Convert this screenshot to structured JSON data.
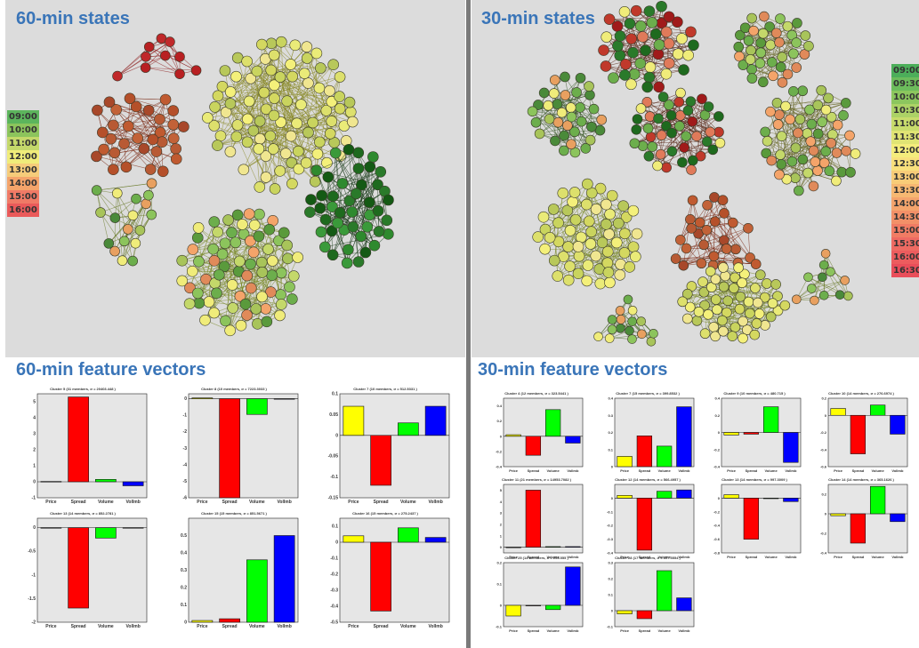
{
  "sections": {
    "states60_title": "60-min states",
    "states30_title": "30-min states",
    "feat60_title": "60-min feature vectors",
    "feat30_title": "30-min feature vectors"
  },
  "colors": {
    "panel_bg": "#dcdcdc",
    "title_blue": "#3a75b8",
    "Price": "#ffff00",
    "Spread": "#ff0000",
    "Volume": "#00ff00",
    "VolImb": "#0000ff",
    "edge_red": "#8b1a1a",
    "edge_green": "#7a8a2a"
  },
  "legend60": [
    {
      "label": "09:00",
      "color": "#5cb55c"
    },
    {
      "label": "10:00",
      "color": "#8cc45c"
    },
    {
      "label": "11:00",
      "color": "#c4d86a"
    },
    {
      "label": "12:00",
      "color": "#f0ec7a"
    },
    {
      "label": "13:00",
      "color": "#f6cc7a"
    },
    {
      "label": "14:00",
      "color": "#f4a46a"
    },
    {
      "label": "15:00",
      "color": "#f07a66"
    },
    {
      "label": "16:00",
      "color": "#ea5a5a"
    }
  ],
  "legend30": [
    {
      "label": "09:00",
      "color": "#4cae5a"
    },
    {
      "label": "09:30",
      "color": "#6cbc5c"
    },
    {
      "label": "10:00",
      "color": "#8cc65e"
    },
    {
      "label": "10:30",
      "color": "#acd266"
    },
    {
      "label": "11:00",
      "color": "#c8dc6c"
    },
    {
      "label": "11:30",
      "color": "#e0e474"
    },
    {
      "label": "12:00",
      "color": "#f4ec7c"
    },
    {
      "label": "12:30",
      "color": "#f8e07c"
    },
    {
      "label": "13:00",
      "color": "#f8cc78"
    },
    {
      "label": "13:30",
      "color": "#f6b872"
    },
    {
      "label": "14:00",
      "color": "#f4a46c"
    },
    {
      "label": "14:30",
      "color": "#f29068"
    },
    {
      "label": "15:00",
      "color": "#f07c64"
    },
    {
      "label": "15:30",
      "color": "#ee6a62"
    },
    {
      "label": "16:00",
      "color": "#ec5c5e"
    },
    {
      "label": "16:30",
      "color": "#e94e5a"
    }
  ],
  "network_colors": {
    "brown": [
      "#b5502a",
      "#c05a30",
      "#a8482a",
      "#b85a34",
      "#c26238"
    ],
    "yellow": [
      "#f4f07a",
      "#dde06c",
      "#c9d45e",
      "#eaeb78",
      "#b8c85a",
      "#f0e690",
      "#d4d860"
    ],
    "mixed": [
      "#8cc45c",
      "#6cae4c",
      "#c4d86a",
      "#f0ec7a",
      "#f4a46a",
      "#5a9a3c",
      "#a8c45a",
      "#e08a5a"
    ],
    "darkgreen": [
      "#1e6a1e",
      "#2a7a2a",
      "#145a14",
      "#2e8a2e",
      "#3a9a3a"
    ],
    "redgreen": [
      "#2a7a2a",
      "#c0392b",
      "#e07a5a",
      "#6cae4c",
      "#f0ec7a",
      "#a01a1a",
      "#1e6a1e"
    ],
    "red": [
      "#c0282a",
      "#d03030",
      "#b82022"
    ],
    "olive": [
      "#6cae4c",
      "#8cc45c",
      "#a8c45a",
      "#f0ec7a",
      "#e8a060",
      "#4a8a3a"
    ]
  },
  "chart_data": [
    {
      "type": "bar",
      "title": "Cluster 5 (31 members, σ = 20403.448 )",
      "categories": [
        "Price",
        "Spread",
        "Volume",
        "VolImb"
      ],
      "values": [
        0.02,
        5.3,
        0.15,
        -0.25
      ],
      "ylim": [
        -1,
        5.5
      ],
      "yticks": [
        -1,
        0,
        1,
        2,
        3,
        4,
        5
      ]
    },
    {
      "type": "bar",
      "title": "Cluster 8 (10 members, σ = 7223.3033 )",
      "categories": [
        "Price",
        "Spread",
        "Volume",
        "VolImb"
      ],
      "values": [
        0.05,
        -6.0,
        -0.95,
        0.0
      ],
      "ylim": [
        -6,
        0.3
      ],
      "yticks": [
        -6,
        -5,
        -4,
        -3,
        -2,
        -1,
        0
      ]
    },
    {
      "type": "bar",
      "title": "Cluster 7 (10 members, σ = 512.5331 )",
      "categories": [
        "Price",
        "Spread",
        "Volume",
        "VolImb"
      ],
      "values": [
        0.07,
        -0.12,
        0.03,
        0.07
      ],
      "ylim": [
        -0.15,
        0.1
      ],
      "yticks": [
        -0.15,
        -0.1,
        -0.05,
        0,
        0.05,
        0.1
      ]
    },
    {
      "type": "bar",
      "title": "Cluster 13 (14 members, σ = 852.2781 )",
      "categories": [
        "Price",
        "Spread",
        "Volume",
        "VolImb"
      ],
      "values": [
        0.0,
        -1.7,
        -0.22,
        0.0
      ],
      "ylim": [
        -2,
        0.2
      ],
      "yticks": [
        -2,
        -1.5,
        -1,
        -0.5,
        0
      ]
    },
    {
      "type": "bar",
      "title": "Cluster 15 (15 members, σ = 851.5671 )",
      "categories": [
        "Price",
        "Spread",
        "Volume",
        "VolImb"
      ],
      "values": [
        0.01,
        0.02,
        0.36,
        0.5
      ],
      "ylim": [
        0,
        0.6
      ],
      "yticks": [
        0,
        0.1,
        0.2,
        0.3,
        0.4,
        0.5
      ]
    },
    {
      "type": "bar",
      "title": "Cluster 16 (15 members, σ = 275.2437 )",
      "categories": [
        "Price",
        "Spread",
        "Volume",
        "VolImb"
      ],
      "values": [
        0.04,
        -0.43,
        0.09,
        0.03
      ],
      "ylim": [
        -0.5,
        0.15
      ],
      "yticks": [
        -0.5,
        -0.4,
        -0.3,
        -0.2,
        -0.1,
        0,
        0.1
      ]
    },
    {
      "type": "bar",
      "title": "Cluster 4 (12 members, σ = 323.5441 )",
      "categories": [
        "Price",
        "Spread",
        "Volume",
        "VolImb"
      ],
      "values": [
        0.02,
        -0.25,
        0.35,
        -0.09
      ],
      "ylim": [
        -0.4,
        0.5
      ],
      "yticks": [
        -0.4,
        -0.2,
        0,
        0.2,
        0.4
      ]
    },
    {
      "type": "bar",
      "title": "Cluster 7 (15 members, σ = 399.8532 )",
      "categories": [
        "Price",
        "Spread",
        "Volume",
        "VolImb"
      ],
      "values": [
        0.06,
        0.18,
        0.12,
        0.35
      ],
      "ylim": [
        0,
        0.4
      ],
      "yticks": [
        0,
        0.1,
        0.2,
        0.3,
        0.4
      ]
    },
    {
      "type": "bar",
      "title": "Cluster 9 (10 members, σ = 480.715 )",
      "categories": [
        "Price",
        "Spread",
        "Volume",
        "VolImb"
      ],
      "values": [
        -0.03,
        -0.02,
        0.3,
        -0.35
      ],
      "ylim": [
        -0.4,
        0.4
      ],
      "yticks": [
        -0.4,
        -0.2,
        0,
        0.2,
        0.4
      ]
    },
    {
      "type": "bar",
      "title": "Cluster 10 (14 members, σ = 276.6974 )",
      "categories": [
        "Price",
        "Spread",
        "Volume",
        "VolImb"
      ],
      "values": [
        0.08,
        -0.45,
        0.12,
        -0.22
      ],
      "ylim": [
        -0.6,
        0.2
      ],
      "yticks": [
        -0.6,
        -0.4,
        -0.2,
        0,
        0.2
      ]
    },
    {
      "type": "bar",
      "title": "Cluster 11 (21 members, σ = 14953.7082 )",
      "categories": [
        "Price",
        "Spread",
        "Volume",
        "VolImb"
      ],
      "values": [
        0.0,
        5.0,
        0.05,
        0.05
      ],
      "ylim": [
        -0.5,
        5.5
      ],
      "yticks": [
        0,
        1,
        2,
        3,
        4,
        5
      ]
    },
    {
      "type": "bar",
      "title": "Cluster 12 (14 members, σ = 566.4957 )",
      "categories": [
        "Price",
        "Spread",
        "Volume",
        "VolImb"
      ],
      "values": [
        0.02,
        -0.38,
        0.05,
        0.06
      ],
      "ylim": [
        -0.4,
        0.1
      ],
      "yticks": [
        -0.4,
        -0.3,
        -0.2,
        -0.1,
        0
      ]
    },
    {
      "type": "bar",
      "title": "Cluster 13 (14 members, σ = 997.3009 )",
      "categories": [
        "Price",
        "Spread",
        "Volume",
        "VolImb"
      ],
      "values": [
        0.05,
        -0.6,
        0.0,
        -0.05
      ],
      "ylim": [
        -0.8,
        0.2
      ],
      "yticks": [
        -0.8,
        -0.6,
        -0.4,
        -0.2,
        0
      ]
    },
    {
      "type": "bar",
      "title": "Cluster 14 (14 members, σ = 365.1626 )",
      "categories": [
        "Price",
        "Spread",
        "Volume",
        "VolImb"
      ],
      "values": [
        -0.02,
        -0.3,
        0.28,
        -0.08
      ],
      "ylim": [
        -0.4,
        0.3
      ],
      "yticks": [
        -0.4,
        -0.2,
        0,
        0.2
      ]
    },
    {
      "type": "bar",
      "title": "Cluster 25 (14 members, σ = 255.555 )",
      "categories": [
        "Price",
        "Spread",
        "Volume",
        "VolImb"
      ],
      "values": [
        -0.05,
        0.0,
        -0.02,
        0.18
      ],
      "ylim": [
        -0.1,
        0.2
      ],
      "yticks": [
        -0.1,
        0,
        0.1,
        0.2
      ]
    },
    {
      "type": "bar",
      "title": "Cluster 28 (17 members, σ = 227.5554 )",
      "categories": [
        "Price",
        "Spread",
        "Volume",
        "VolImb"
      ],
      "values": [
        -0.02,
        -0.05,
        0.25,
        0.08
      ],
      "ylim": [
        -0.1,
        0.3
      ],
      "yticks": [
        -0.1,
        0,
        0.1,
        0.2,
        0.3
      ]
    }
  ]
}
